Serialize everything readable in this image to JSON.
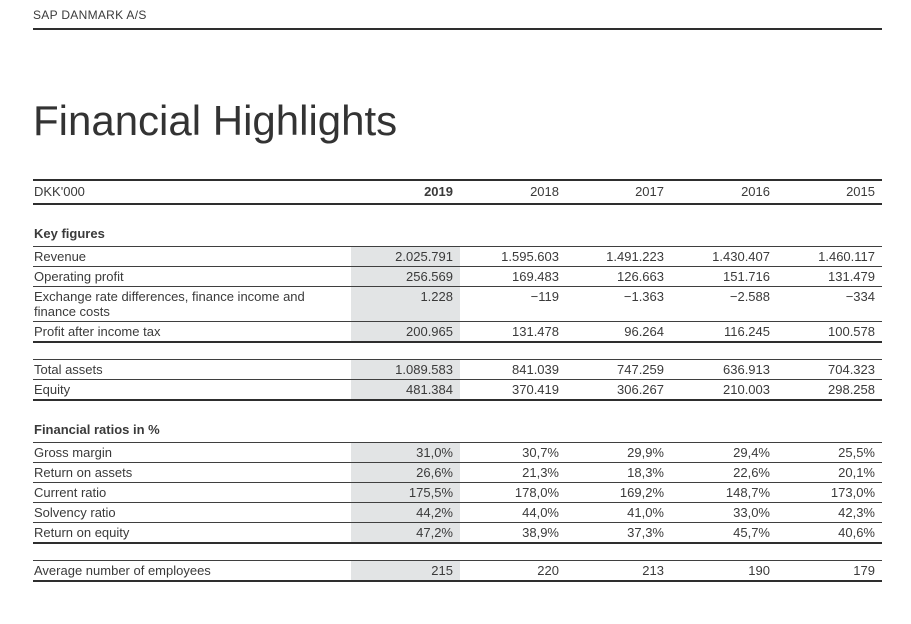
{
  "header": {
    "company": "SAP DANMARK A/S"
  },
  "title": "Financial Highlights",
  "table": {
    "unit_label": "DKK'000",
    "years": [
      "2019",
      "2018",
      "2017",
      "2016",
      "2015"
    ],
    "highlight_year": "2019",
    "highlight_color": "#e2e4e5",
    "sections": [
      {
        "heading": "Key figures",
        "rows": [
          {
            "label": "Revenue",
            "values": [
              "2.025.791",
              "1.595.603",
              "1.491.223",
              "1.430.407",
              "1.460.117"
            ]
          },
          {
            "label": "Operating profit",
            "values": [
              "256.569",
              "169.483",
              "126.663",
              "151.716",
              "131.479"
            ]
          },
          {
            "label": "Exchange rate differences, finance income and finance costs",
            "values": [
              "1.228",
              "−119",
              "−1.363",
              "−2.588",
              "−334"
            ]
          },
          {
            "label": "Profit after income tax",
            "values": [
              "200.965",
              "131.478",
              "96.264",
              "116.245",
              "100.578"
            ]
          }
        ]
      },
      {
        "heading": null,
        "rows": [
          {
            "label": "Total assets",
            "values": [
              "1.089.583",
              "841.039",
              "747.259",
              "636.913",
              "704.323"
            ]
          },
          {
            "label": "Equity",
            "values": [
              "481.384",
              "370.419",
              "306.267",
              "210.003",
              "298.258"
            ]
          }
        ]
      },
      {
        "heading": "Financial ratios in %",
        "rows": [
          {
            "label": "Gross margin",
            "values": [
              "31,0%",
              "30,7%",
              "29,9%",
              "29,4%",
              "25,5%"
            ]
          },
          {
            "label": "Return on assets",
            "values": [
              "26,6%",
              "21,3%",
              "18,3%",
              "22,6%",
              "20,1%"
            ]
          },
          {
            "label": "Current ratio",
            "values": [
              "175,5%",
              "178,0%",
              "169,2%",
              "148,7%",
              "173,0%"
            ]
          },
          {
            "label": "Solvency ratio",
            "values": [
              "44,2%",
              "44,0%",
              "41,0%",
              "33,0%",
              "42,3%"
            ]
          },
          {
            "label": "Return on equity",
            "values": [
              "47,2%",
              "38,9%",
              "37,3%",
              "45,7%",
              "40,6%"
            ]
          }
        ]
      },
      {
        "heading": null,
        "rows": [
          {
            "label": "Average number of employees",
            "values": [
              "215",
              "220",
              "213",
              "190",
              "179"
            ]
          }
        ]
      }
    ]
  }
}
